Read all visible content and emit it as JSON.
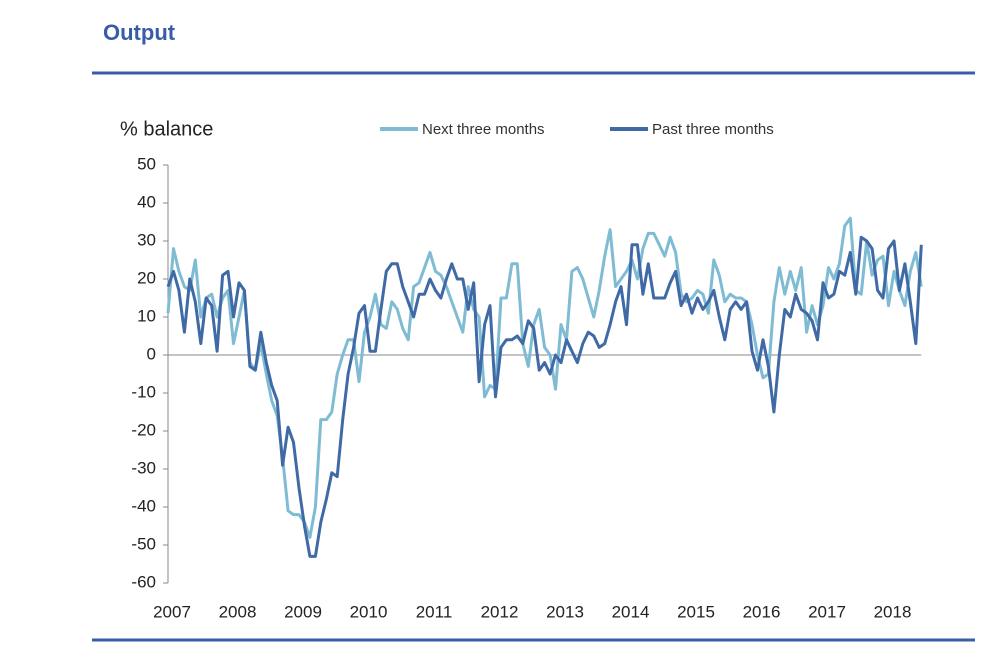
{
  "chart_data": {
    "type": "line",
    "title": "Output",
    "y_label": "% balance",
    "categories": [
      "2007",
      null,
      null,
      null,
      null,
      null,
      null,
      null,
      null,
      null,
      null,
      null,
      "2008",
      null,
      null,
      null,
      null,
      null,
      null,
      null,
      null,
      null,
      null,
      null,
      "2009",
      null,
      null,
      null,
      null,
      null,
      null,
      null,
      null,
      null,
      null,
      null,
      "2010",
      null,
      null,
      null,
      null,
      null,
      null,
      null,
      null,
      null,
      null,
      null,
      "2011",
      null,
      null,
      null,
      null,
      null,
      null,
      null,
      null,
      null,
      null,
      null,
      "2012",
      null,
      null,
      null,
      null,
      null,
      null,
      null,
      null,
      null,
      null,
      null,
      "2013",
      null,
      null,
      null,
      null,
      null,
      null,
      null,
      null,
      null,
      null,
      null,
      "2014",
      null,
      null,
      null,
      null,
      null,
      null,
      null,
      null,
      null,
      null,
      null,
      "2015",
      null,
      null,
      null,
      null,
      null,
      null,
      null,
      null,
      null,
      null,
      null,
      "2016",
      null,
      null,
      null,
      null,
      null,
      null,
      null,
      null,
      null,
      null,
      null,
      "2017",
      null,
      null,
      null,
      null,
      null,
      null,
      null,
      null,
      null,
      null,
      null,
      "2018",
      null,
      null,
      null,
      null,
      null,
      null
    ],
    "series": [
      {
        "name": "Next three months",
        "color": "#7fbcd4",
        "values": [
          11,
          28,
          22,
          18,
          17,
          25,
          10,
          15,
          16,
          10,
          15,
          17,
          3,
          10,
          17,
          -2,
          -4,
          3,
          -5,
          -12,
          -16,
          -27,
          -41,
          -42,
          -42,
          -44,
          -48,
          -40,
          -17,
          -17,
          -15,
          -5,
          0,
          4,
          4,
          -7,
          6,
          10,
          16,
          8,
          7,
          14,
          12,
          7,
          4,
          18,
          19,
          23,
          27,
          22,
          21,
          18,
          14,
          10,
          6,
          18,
          12,
          10,
          -11,
          -8,
          -9,
          15,
          15,
          24,
          24,
          3,
          -3,
          8,
          12,
          2,
          0,
          -9,
          8,
          4,
          22,
          23,
          20,
          15,
          10,
          17,
          26,
          33,
          18,
          20,
          22,
          25,
          20,
          28,
          32,
          32,
          29,
          26,
          31,
          27,
          16,
          14,
          15,
          17,
          16,
          11,
          25,
          21,
          14,
          16,
          15,
          15,
          14,
          8,
          0,
          -6,
          -5,
          14,
          23,
          16,
          22,
          17,
          23,
          6,
          13,
          8,
          13,
          23,
          20,
          24,
          34,
          36,
          17,
          16,
          30,
          21,
          25,
          26,
          13,
          22,
          17,
          13,
          22,
          27,
          18
        ]
      },
      {
        "name": "Past three months",
        "color": "#3f6aa6",
        "values": [
          18,
          22,
          17,
          6,
          20,
          14,
          3,
          15,
          13,
          1,
          21,
          22,
          10,
          19,
          17,
          -3,
          -4,
          6,
          -2,
          -8,
          -12,
          -29,
          -19,
          -23,
          -35,
          -45,
          -53,
          -53,
          -44,
          -38,
          -31,
          -32,
          -17,
          -5,
          2,
          11,
          13,
          1,
          1,
          12,
          22,
          24,
          24,
          18,
          14,
          10,
          16,
          16,
          20,
          17,
          15,
          20,
          24,
          20,
          20,
          12,
          19,
          -7,
          8,
          13,
          -11,
          2,
          4,
          4,
          5,
          3,
          9,
          7,
          -4,
          -2,
          -5,
          0,
          -2,
          4,
          1,
          -2,
          3,
          6,
          5,
          2,
          3,
          8,
          14,
          18,
          8,
          29,
          29,
          16,
          24,
          15,
          15,
          15,
          19,
          22,
          13,
          16,
          11,
          15,
          12,
          14,
          17,
          10,
          4,
          12,
          14,
          12,
          14,
          1,
          -4,
          4,
          -3,
          -15,
          0,
          12,
          10,
          16,
          12,
          11,
          9,
          4,
          19,
          15,
          16,
          22,
          21,
          27,
          16,
          31,
          30,
          28,
          17,
          15,
          28,
          30,
          17,
          24,
          14,
          3,
          29
        ]
      }
    ],
    "ylim": [
      -60,
      50
    ],
    "yticks": [
      -60,
      -50,
      -40,
      -30,
      -20,
      -10,
      0,
      10,
      20,
      30,
      40,
      50
    ]
  }
}
